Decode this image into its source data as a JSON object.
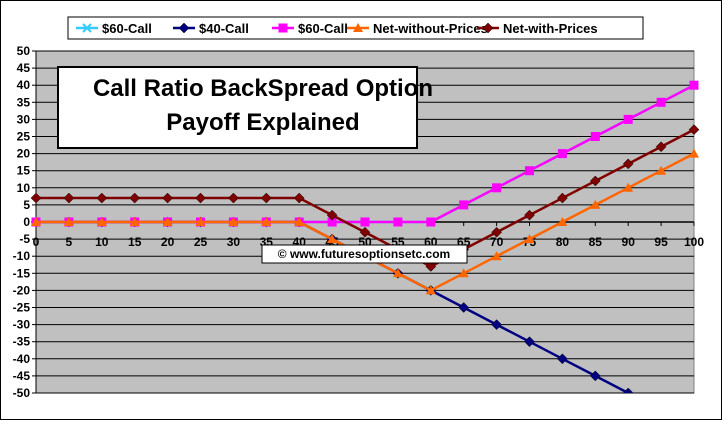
{
  "chart_data": {
    "type": "line",
    "title_lines": [
      "Call Ratio BackSpread Option",
      "Payoff Explained"
    ],
    "watermark": "© www.futuresoptionsetc.com",
    "x": [
      0,
      5,
      10,
      15,
      20,
      25,
      30,
      35,
      40,
      45,
      50,
      55,
      60,
      65,
      70,
      75,
      80,
      85,
      90,
      95,
      100
    ],
    "xlim": [
      0,
      100
    ],
    "ylim": [
      -50,
      50
    ],
    "ystep": 5,
    "grid": true,
    "legend_position": "top",
    "plot_background": "#c0c0c0",
    "series": [
      {
        "name": "$60-Call",
        "color": "#33ccff",
        "marker": "x",
        "values": [
          0,
          0,
          0,
          0,
          0,
          0,
          0,
          0,
          0,
          0,
          0,
          0,
          0,
          5,
          10,
          15,
          20,
          25,
          30,
          35,
          40
        ]
      },
      {
        "name": "$40-Call",
        "color": "#000080",
        "marker": "diamond",
        "values": [
          0,
          0,
          0,
          0,
          0,
          0,
          0,
          0,
          0,
          -5,
          -10,
          -15,
          -20,
          -25,
          -30,
          -35,
          -40,
          -45,
          -50,
          null,
          null
        ]
      },
      {
        "name": "$60-Call",
        "color": "#ff00ff",
        "marker": "square",
        "values": [
          0,
          0,
          0,
          0,
          0,
          0,
          0,
          0,
          0,
          0,
          0,
          0,
          0,
          5,
          10,
          15,
          20,
          25,
          30,
          35,
          40
        ]
      },
      {
        "name": "Net-without-Prices",
        "color": "#ff6600",
        "marker": "triangle",
        "values": [
          0,
          0,
          0,
          0,
          0,
          0,
          0,
          0,
          0,
          -5,
          -10,
          -15,
          -20,
          -15,
          -10,
          -5,
          0,
          5,
          10,
          15,
          20
        ]
      },
      {
        "name": "Net-with-Prices",
        "color": "#800000",
        "marker": "diamond",
        "values": [
          7,
          7,
          7,
          7,
          7,
          7,
          7,
          7,
          7,
          2,
          -3,
          -8,
          -13,
          -8,
          -3,
          2,
          7,
          12,
          17,
          22,
          27
        ]
      }
    ]
  }
}
